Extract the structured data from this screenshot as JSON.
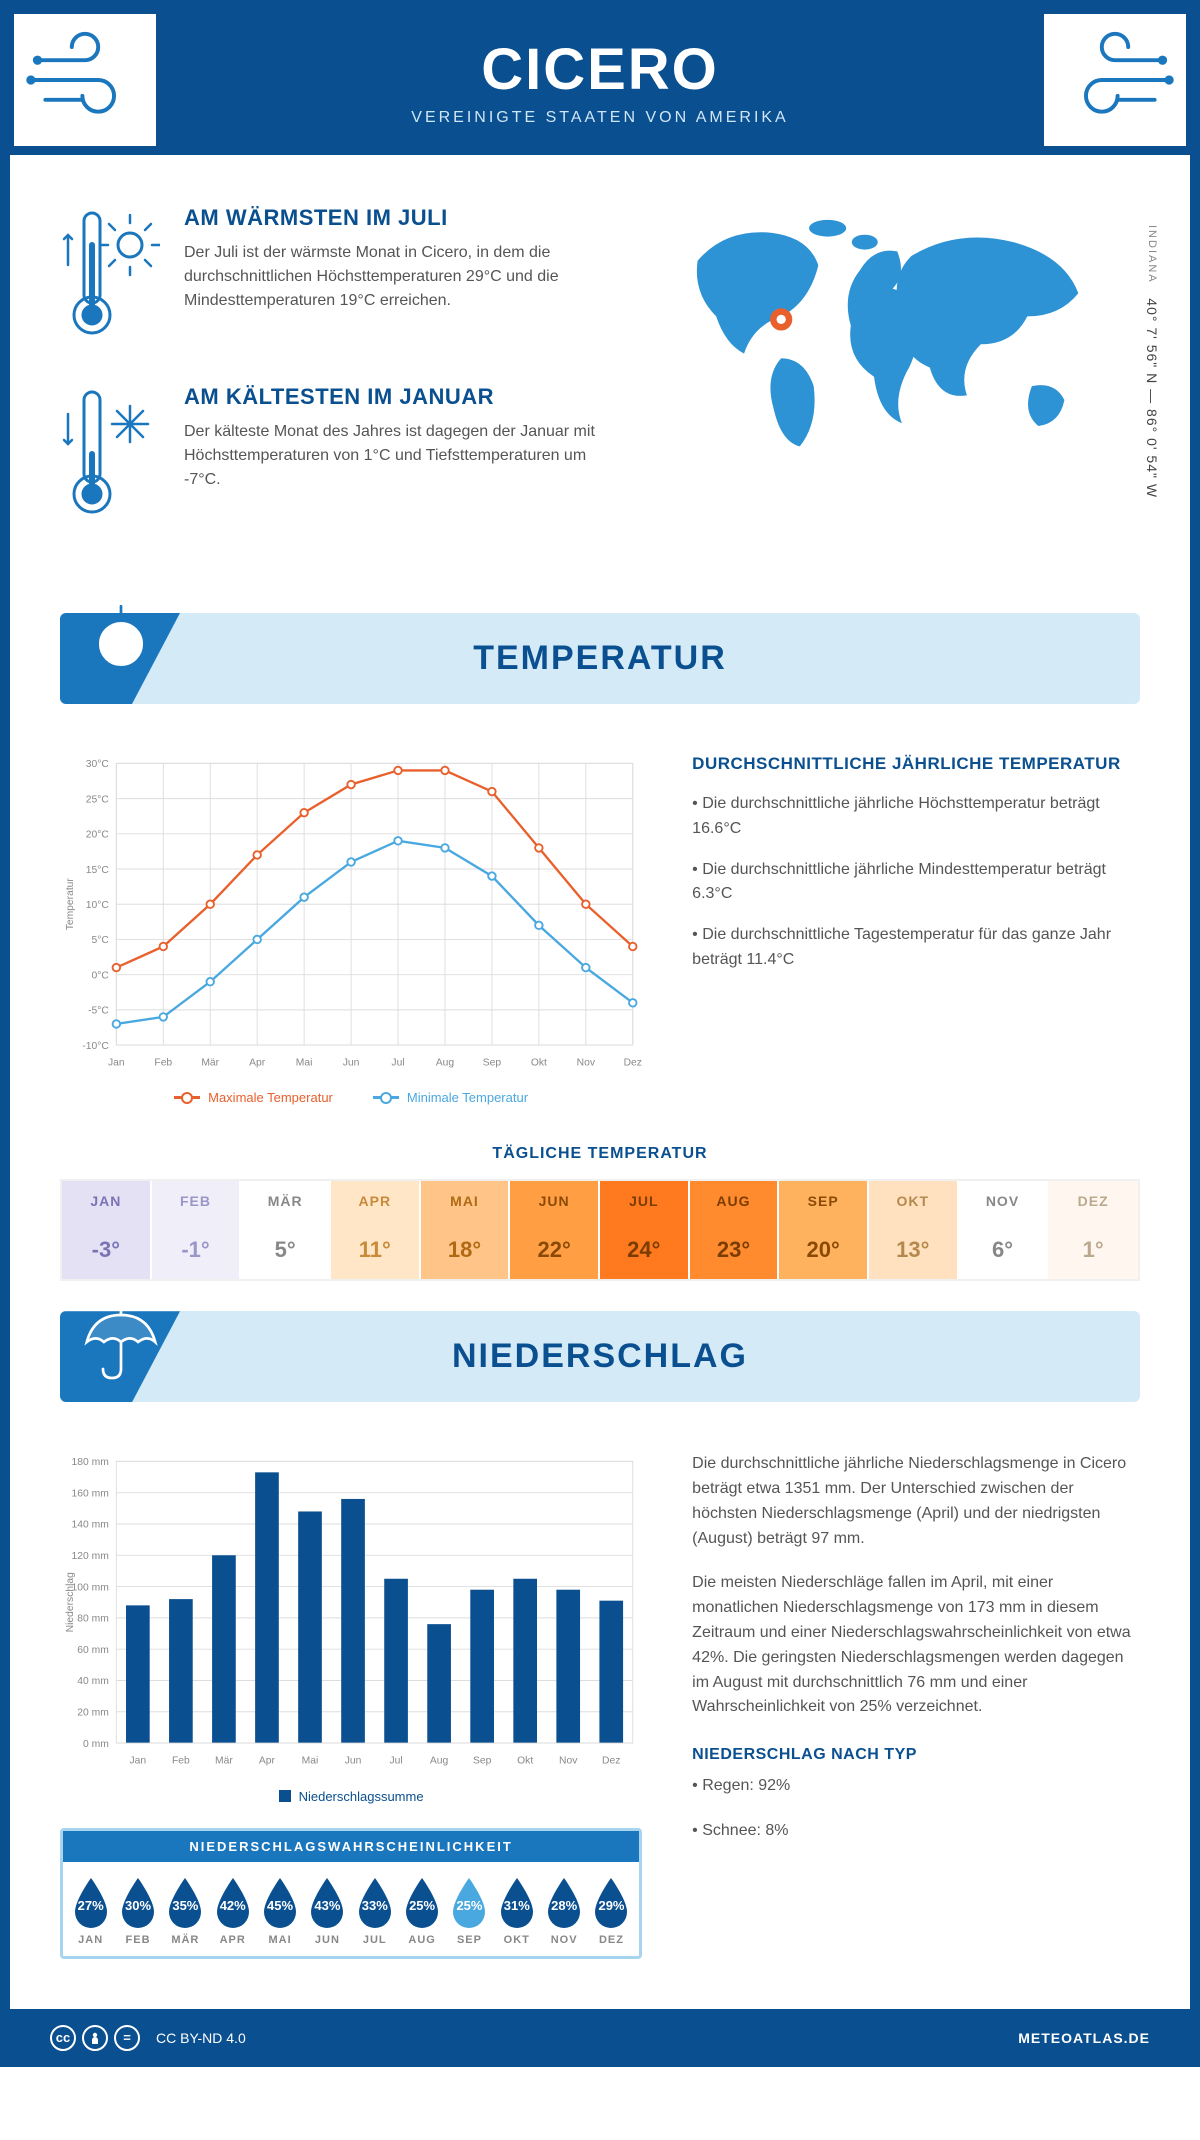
{
  "header": {
    "title": "CICERO",
    "subtitle": "VEREINIGTE STAATEN VON AMERIKA"
  },
  "location": {
    "coords": "40° 7' 56\" N — 86° 0' 54\" W",
    "region": "INDIANA",
    "marker": {
      "cx_pct": 26,
      "cy_pct": 44
    }
  },
  "intro": {
    "warm": {
      "title": "AM WÄRMSTEN IM JULI",
      "text": "Der Juli ist der wärmste Monat in Cicero, in dem die durchschnittlichen Höchsttemperaturen 29°C und die Mindesttemperaturen 19°C erreichen."
    },
    "cold": {
      "title": "AM KÄLTESTEN IM JANUAR",
      "text": "Der kälteste Monat des Jahres ist dagegen der Januar mit Höchsttemperaturen von 1°C und Tiefsttemperaturen um -7°C."
    }
  },
  "temperature": {
    "banner": "TEMPERATUR",
    "chart": {
      "months": [
        "Jan",
        "Feb",
        "Mär",
        "Apr",
        "Mai",
        "Jun",
        "Jul",
        "Aug",
        "Sep",
        "Okt",
        "Nov",
        "Dez"
      ],
      "max": [
        1,
        4,
        10,
        17,
        23,
        27,
        29,
        29,
        26,
        18,
        10,
        4
      ],
      "min": [
        -7,
        -6,
        -1,
        5,
        11,
        16,
        19,
        18,
        14,
        7,
        1,
        -4
      ],
      "ylim": [
        -10,
        30
      ],
      "ytick_step": 5,
      "y_unit": "°C",
      "y_title": "Temperatur",
      "colors": {
        "max": "#e8602c",
        "min": "#4aa8e0",
        "grid": "#dddddd",
        "axis": "#888888"
      },
      "legend": {
        "max": "Maximale Temperatur",
        "min": "Minimale Temperatur"
      }
    },
    "summary": {
      "heading": "DURCHSCHNITTLICHE JÄHRLICHE TEMPERATUR",
      "p1": "• Die durchschnittliche jährliche Höchsttemperatur beträgt 16.6°C",
      "p2": "• Die durchschnittliche jährliche Mindesttemperatur beträgt 6.3°C",
      "p3": "• Die durchschnittliche Tagestemperatur für das ganze Jahr beträgt 11.4°C"
    },
    "daily": {
      "title": "TÄGLICHE TEMPERATUR",
      "months": [
        "JAN",
        "FEB",
        "MÄR",
        "APR",
        "MAI",
        "JUN",
        "JUL",
        "AUG",
        "SEP",
        "OKT",
        "NOV",
        "DEZ"
      ],
      "values": [
        "-3°",
        "-1°",
        "5°",
        "11°",
        "18°",
        "22°",
        "24°",
        "23°",
        "20°",
        "13°",
        "6°",
        "1°"
      ],
      "bg": [
        "#e4e1f5",
        "#efeef9",
        "#ffffff",
        "#ffe6c7",
        "#ffc488",
        "#ff9e42",
        "#ff7a1f",
        "#ff8b2e",
        "#ffb25d",
        "#ffe0bf",
        "#ffffff",
        "#fff7ef"
      ],
      "fg": [
        "#7a74b5",
        "#9a96c8",
        "#888888",
        "#c98a3a",
        "#b06a14",
        "#8a4a06",
        "#7a3c00",
        "#7a3c00",
        "#8a4a06",
        "#b5894d",
        "#888888",
        "#bba88f"
      ]
    }
  },
  "precipitation": {
    "banner": "NIEDERSCHLAG",
    "chart": {
      "months": [
        "Jan",
        "Feb",
        "Mär",
        "Apr",
        "Mai",
        "Jun",
        "Jul",
        "Aug",
        "Sep",
        "Okt",
        "Nov",
        "Dez"
      ],
      "values_mm": [
        88,
        92,
        120,
        173,
        148,
        156,
        105,
        76,
        98,
        105,
        98,
        91
      ],
      "ylim": [
        0,
        180
      ],
      "ytick_step": 20,
      "y_unit": " mm",
      "y_title": "Niederschlag",
      "bar_color": "#0a4f8f",
      "grid": "#dddddd",
      "legend": "Niederschlagssumme"
    },
    "text": {
      "p1": "Die durchschnittliche jährliche Niederschlagsmenge in Cicero beträgt etwa 1351 mm. Der Unterschied zwischen der höchsten Niederschlagsmenge (April) und der niedrigsten (August) beträgt 97 mm.",
      "p2": "Die meisten Niederschläge fallen im April, mit einer monatlichen Niederschlagsmenge von 173 mm in diesem Zeitraum und einer Niederschlagswahrscheinlichkeit von etwa 42%. Die geringsten Niederschlagsmengen werden dagegen im August mit durchschnittlich 76 mm und einer Wahrscheinlichkeit von 25% verzeichnet.",
      "type_heading": "NIEDERSCHLAG NACH TYP",
      "rain": "• Regen: 92%",
      "snow": "• Schnee: 8%"
    },
    "probability": {
      "title": "NIEDERSCHLAGSWAHRSCHEINLICHKEIT",
      "months": [
        "JAN",
        "FEB",
        "MÄR",
        "APR",
        "MAI",
        "JUN",
        "JUL",
        "AUG",
        "SEP",
        "OKT",
        "NOV",
        "DEZ"
      ],
      "values": [
        "27%",
        "30%",
        "35%",
        "42%",
        "45%",
        "43%",
        "33%",
        "25%",
        "25%",
        "31%",
        "28%",
        "29%"
      ],
      "highlight_index": 8,
      "colors": {
        "normal": "#0a4f8f",
        "highlight": "#4aa8e0"
      }
    }
  },
  "footer": {
    "license": "CC BY-ND 4.0",
    "site": "METEOATLAS.DE"
  }
}
